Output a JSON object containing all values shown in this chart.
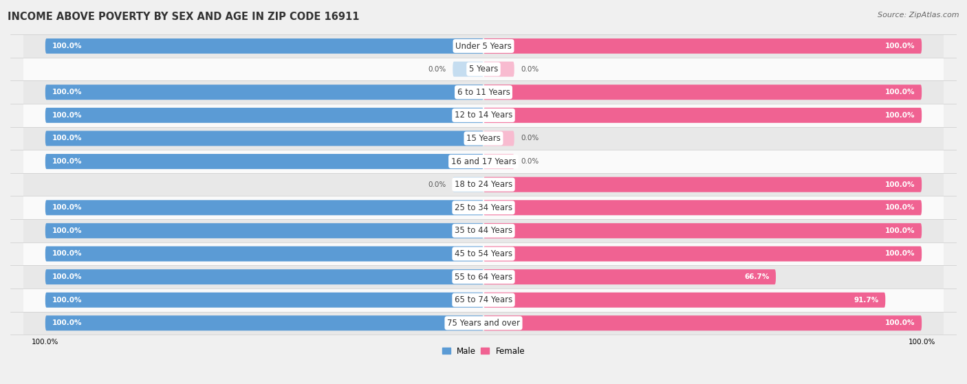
{
  "title": "INCOME ABOVE POVERTY BY SEX AND AGE IN ZIP CODE 16911",
  "source": "Source: ZipAtlas.com",
  "categories": [
    "Under 5 Years",
    "5 Years",
    "6 to 11 Years",
    "12 to 14 Years",
    "15 Years",
    "16 and 17 Years",
    "18 to 24 Years",
    "25 to 34 Years",
    "35 to 44 Years",
    "45 to 54 Years",
    "55 to 64 Years",
    "65 to 74 Years",
    "75 Years and over"
  ],
  "male_values": [
    100.0,
    0.0,
    100.0,
    100.0,
    100.0,
    100.0,
    0.0,
    100.0,
    100.0,
    100.0,
    100.0,
    100.0,
    100.0
  ],
  "female_values": [
    100.0,
    0.0,
    100.0,
    100.0,
    0.0,
    0.0,
    100.0,
    100.0,
    100.0,
    100.0,
    66.7,
    91.7,
    100.0
  ],
  "male_color": "#5b9bd5",
  "female_color": "#f06292",
  "male_color_light": "#c5ddf0",
  "female_color_light": "#f8bbd0",
  "bar_height": 0.62,
  "bg_color": "#f0f0f0",
  "row_bg_even": "#e8e8e8",
  "row_bg_odd": "#fafafa",
  "title_fontsize": 10.5,
  "label_fontsize": 8.5,
  "value_fontsize": 7.5,
  "source_fontsize": 8,
  "legend_labels": [
    "Male",
    "Female"
  ],
  "max_val": 100
}
